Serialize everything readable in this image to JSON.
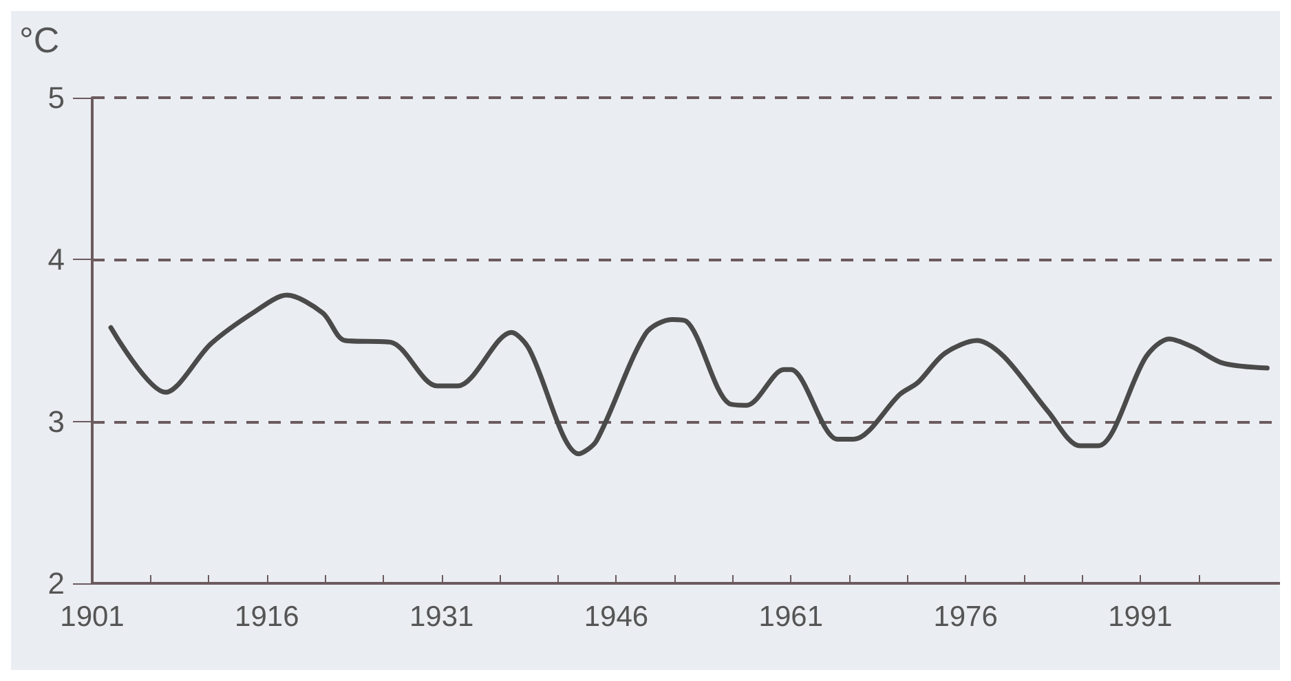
{
  "chart_data": {
    "type": "line",
    "ylabel": "°C",
    "x": [
      1902.6,
      1907.3,
      1911.2,
      1915,
      1917.7,
      1920.8,
      1922.7,
      1926.6,
      1930.6,
      1932.4,
      1937,
      1938.5,
      1942.8,
      1944.3,
      1948.5,
      1950.8,
      1952,
      1955.7,
      1957.2,
      1960.4,
      1961,
      1965,
      1966.4,
      1970.4,
      1971.9,
      1974.2,
      1977,
      1979.3,
      1983.1,
      1985.8,
      1987.4,
      1991.5,
      1993.5,
      1995.5,
      1998.1,
      2001.9
    ],
    "series": [
      {
        "color": "#4a4a4a",
        "values": [
          3.58,
          3.18,
          3.48,
          3.68,
          3.78,
          3.67,
          3.5,
          3.49,
          3.22,
          3.22,
          3.55,
          3.45,
          2.8,
          2.88,
          3.54,
          3.63,
          3.62,
          3.11,
          3.1,
          3.32,
          3.32,
          2.89,
          2.89,
          3.17,
          3.24,
          3.42,
          3.5,
          3.4,
          3.06,
          2.85,
          2.85,
          3.4,
          3.51,
          3.46,
          3.36,
          3.33
        ]
      }
    ],
    "xlim": [
      1901,
      2003
    ],
    "xticks": [
      1901,
      {
        "value": 1906,
        "label": null
      },
      {
        "value": 1911,
        "label": null
      },
      1916,
      {
        "value": 1921,
        "label": null
      },
      {
        "value": 1926,
        "label": null
      },
      1931,
      {
        "value": 1936,
        "label": null
      },
      {
        "value": 1941,
        "label": null
      },
      1946,
      {
        "value": 1951,
        "label": null
      },
      {
        "value": 1956,
        "label": null
      },
      1961,
      {
        "value": 1966,
        "label": null
      },
      {
        "value": 1971,
        "label": null
      },
      1976,
      {
        "value": 1981,
        "label": null
      },
      {
        "value": 1986,
        "label": null
      },
      1991,
      {
        "value": 1996,
        "label": null
      }
    ],
    "ylim": [
      2,
      5
    ],
    "yticks": [
      2,
      3,
      4,
      5
    ],
    "grid": "y",
    "marker": "none",
    "line_style": "solid"
  }
}
